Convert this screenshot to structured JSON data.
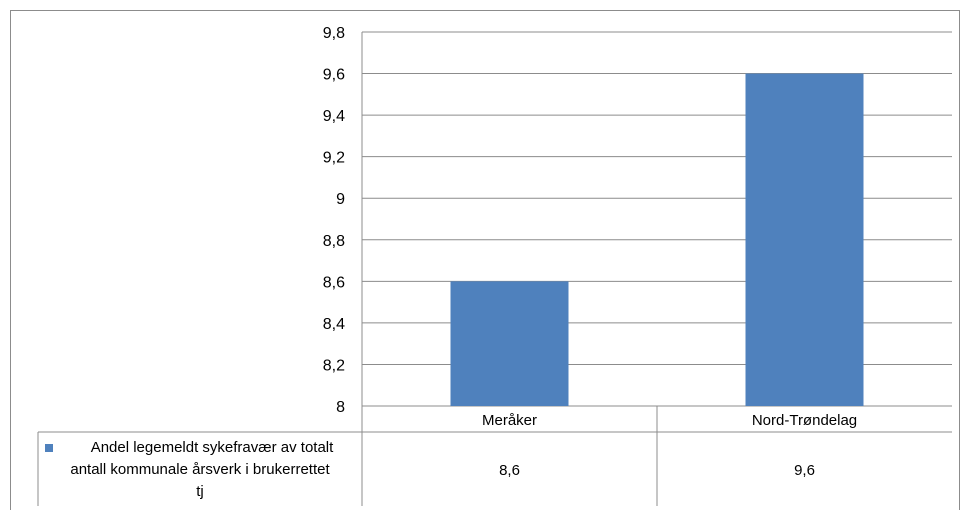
{
  "chart_data": {
    "type": "bar",
    "categories": [
      "Meråker",
      "Nord-Trøndelag"
    ],
    "series": [
      {
        "name": "Andel legemeldt sykefravær av totalt antall kommunale årsverk i brukerrettet tj",
        "values": [
          8.6,
          9.6
        ],
        "value_labels": [
          "8,6",
          "9,6"
        ],
        "color": "#4f81bd"
      }
    ],
    "yticks": [
      "8",
      "8,2",
      "8,4",
      "8,6",
      "8,8",
      "9",
      "9,2",
      "9,4",
      "9,6",
      "9,8"
    ],
    "ylim": [
      8,
      9.8
    ],
    "grid": true,
    "legend": "data-table"
  }
}
